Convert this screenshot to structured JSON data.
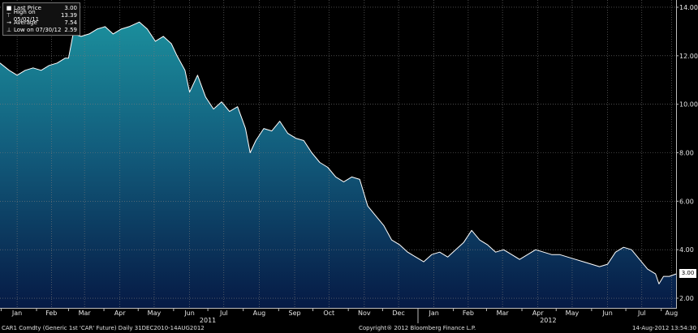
{
  "legend": {
    "rows": [
      {
        "label": "Last Price",
        "value": "3.00",
        "icon": "square-icon"
      },
      {
        "label": "High on 05/02/11",
        "value": "13.39",
        "icon": "high-marker-icon"
      },
      {
        "label": "Average",
        "value": "7.54",
        "icon": "average-marker-icon"
      },
      {
        "label": "Low on 07/30/12",
        "value": "2.59",
        "icon": "low-marker-icon"
      }
    ]
  },
  "last_price_tag": "3.00",
  "footer": {
    "left": "CAR1 Comdty (Generic 1st 'CAR' Future)  Daily 31DEC2010-14AUG2012",
    "center": "Copyright® 2012 Bloomberg Finance L.P.",
    "right": "14-Aug-2012 13:54:30"
  },
  "colors": {
    "background": "#000000",
    "area_top": "#1b8e9c",
    "area_bottom": "#061a45",
    "line": "#ffffff",
    "grid": "#7a7a7a"
  },
  "chart_data": {
    "type": "area",
    "title": "",
    "xlabel": "",
    "ylabel": "",
    "ylim": [
      1.6,
      14.3
    ],
    "yticks": [
      2.0,
      4.0,
      6.0,
      8.0,
      10.0,
      12.0,
      14.0
    ],
    "ytick_labels": [
      "2.00",
      "4.00",
      "6.00",
      "8.00",
      "10.00",
      "12.00",
      "14.00"
    ],
    "xlim": [
      "2010-12-31",
      "2012-08-14"
    ],
    "xticks": [
      {
        "label": "Jan",
        "date": "2011-01-15"
      },
      {
        "label": "Feb",
        "date": "2011-02-14"
      },
      {
        "label": "Mar",
        "date": "2011-03-15"
      },
      {
        "label": "Apr",
        "date": "2011-04-15"
      },
      {
        "label": "May",
        "date": "2011-05-15"
      },
      {
        "label": "Jun",
        "date": "2011-06-15"
      },
      {
        "label": "Jul",
        "date": "2011-07-15"
      },
      {
        "label": "Aug",
        "date": "2011-08-15"
      },
      {
        "label": "Sep",
        "date": "2011-09-15"
      },
      {
        "label": "Oct",
        "date": "2011-10-15"
      },
      {
        "label": "Nov",
        "date": "2011-11-15"
      },
      {
        "label": "Dec",
        "date": "2011-12-15"
      },
      {
        "label": "Jan",
        "date": "2012-01-15"
      },
      {
        "label": "Feb",
        "date": "2012-02-14"
      },
      {
        "label": "Mar",
        "date": "2012-03-15"
      },
      {
        "label": "Apr",
        "date": "2012-04-15"
      },
      {
        "label": "May",
        "date": "2012-05-15"
      },
      {
        "label": "Jun",
        "date": "2012-06-15"
      },
      {
        "label": "Jul",
        "date": "2012-07-15"
      },
      {
        "label": "Aug",
        "date": "2012-08-10"
      }
    ],
    "year_labels": [
      {
        "label": "2011",
        "date": "2011-07-01"
      },
      {
        "label": "2012",
        "date": "2012-04-24"
      }
    ],
    "grid": true,
    "legend_position": "top-left",
    "series": [
      {
        "name": "Last Price",
        "x": [
          "2010-12-31",
          "2011-01-08",
          "2011-01-15",
          "2011-01-22",
          "2011-01-29",
          "2011-02-05",
          "2011-02-12",
          "2011-02-19",
          "2011-02-26",
          "2011-03-01",
          "2011-03-05",
          "2011-03-12",
          "2011-03-19",
          "2011-03-26",
          "2011-04-02",
          "2011-04-09",
          "2011-04-16",
          "2011-04-23",
          "2011-05-02",
          "2011-05-09",
          "2011-05-16",
          "2011-05-23",
          "2011-05-30",
          "2011-06-04",
          "2011-06-11",
          "2011-06-15",
          "2011-06-18",
          "2011-06-22",
          "2011-06-29",
          "2011-07-06",
          "2011-07-13",
          "2011-07-20",
          "2011-07-27",
          "2011-08-03",
          "2011-08-07",
          "2011-08-12",
          "2011-08-19",
          "2011-08-26",
          "2011-09-02",
          "2011-09-09",
          "2011-09-16",
          "2011-09-23",
          "2011-09-30",
          "2011-10-07",
          "2011-10-14",
          "2011-10-21",
          "2011-10-28",
          "2011-11-04",
          "2011-11-11",
          "2011-11-18",
          "2011-11-25",
          "2011-12-02",
          "2011-12-09",
          "2011-12-16",
          "2011-12-23",
          "2011-12-30",
          "2012-01-06",
          "2012-01-13",
          "2012-01-20",
          "2012-01-27",
          "2012-02-03",
          "2012-02-10",
          "2012-02-17",
          "2012-02-24",
          "2012-03-02",
          "2012-03-09",
          "2012-03-16",
          "2012-03-23",
          "2012-03-30",
          "2012-04-06",
          "2012-04-13",
          "2012-04-20",
          "2012-04-27",
          "2012-05-04",
          "2012-05-11",
          "2012-05-18",
          "2012-05-25",
          "2012-06-01",
          "2012-06-08",
          "2012-06-15",
          "2012-06-22",
          "2012-06-29",
          "2012-07-06",
          "2012-07-13",
          "2012-07-20",
          "2012-07-27",
          "2012-07-30",
          "2012-08-03",
          "2012-08-08",
          "2012-08-14"
        ],
        "y": [
          11.7,
          11.4,
          11.2,
          11.4,
          11.5,
          11.4,
          11.6,
          11.7,
          11.9,
          11.9,
          12.9,
          12.8,
          12.9,
          13.1,
          13.2,
          12.9,
          13.1,
          13.2,
          13.39,
          13.1,
          12.6,
          12.8,
          12.5,
          12.0,
          11.4,
          10.5,
          10.8,
          11.2,
          10.3,
          9.8,
          10.1,
          9.7,
          9.9,
          9.0,
          8.0,
          8.5,
          9.0,
          8.9,
          9.3,
          8.8,
          8.6,
          8.5,
          8.0,
          7.6,
          7.4,
          7.0,
          6.8,
          7.0,
          6.9,
          5.8,
          5.4,
          5.0,
          4.4,
          4.2,
          3.9,
          3.7,
          3.5,
          3.8,
          3.9,
          3.7,
          4.0,
          4.3,
          4.8,
          4.4,
          4.2,
          3.9,
          4.0,
          3.8,
          3.6,
          3.8,
          4.0,
          3.9,
          3.8,
          3.8,
          3.7,
          3.6,
          3.5,
          3.4,
          3.3,
          3.4,
          3.9,
          4.1,
          4.0,
          3.6,
          3.2,
          3.0,
          2.59,
          2.9,
          2.9,
          3.0
        ]
      }
    ]
  }
}
